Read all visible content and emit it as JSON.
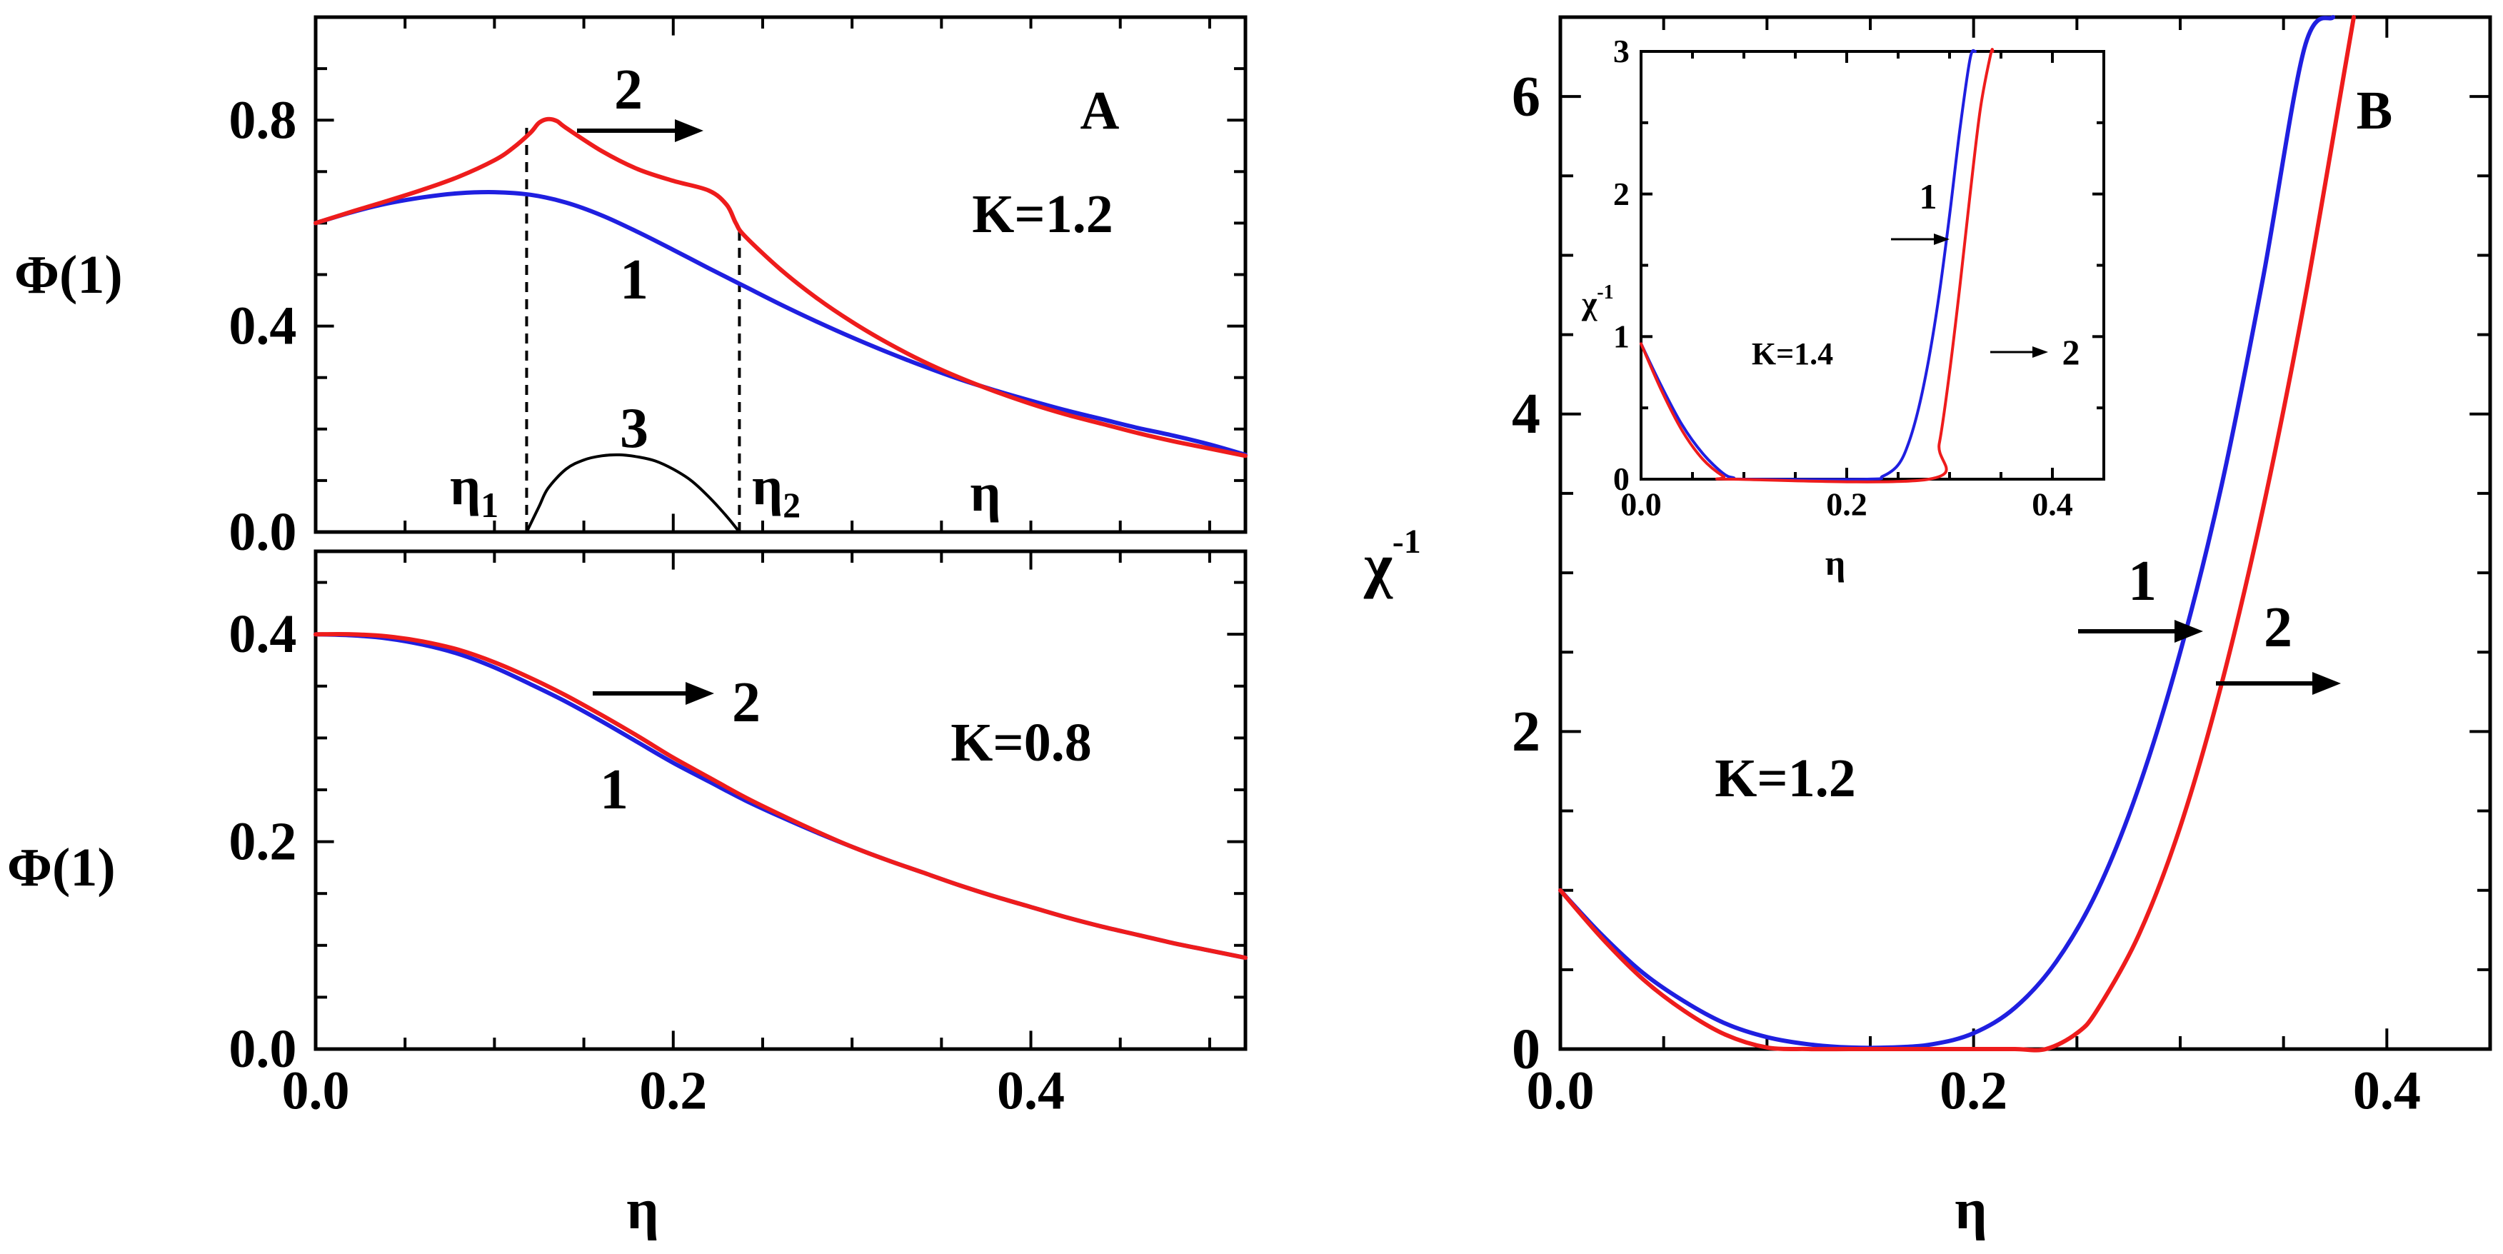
{
  "colors": {
    "curve1": "#1f1fe0",
    "curve2": "#ee1c1c",
    "curve3": "#000000"
  },
  "chart_data": [
    {
      "panel": "A (top)",
      "type": "line",
      "panel_label": "A",
      "annotation": "K=1.2",
      "ylabel": "Φ(1)",
      "xlabel": "η",
      "xlim": [
        0,
        0.52
      ],
      "ylim": [
        0,
        1.0
      ],
      "yticks": [
        "0.0",
        "0.4",
        "0.8"
      ],
      "ytick_values": [
        0,
        0.4,
        0.8
      ],
      "series": [
        {
          "name": "1",
          "color": "#1f1fe0",
          "x": [
            0,
            0.02,
            0.04,
            0.06,
            0.08,
            0.1,
            0.12,
            0.14,
            0.16,
            0.18,
            0.2,
            0.22,
            0.24,
            0.26,
            0.28,
            0.3,
            0.32,
            0.34,
            0.36,
            0.38,
            0.4,
            0.42,
            0.44,
            0.46,
            0.48,
            0.5,
            0.52
          ],
          "y": [
            0.6,
            0.621,
            0.638,
            0.65,
            0.658,
            0.66,
            0.655,
            0.64,
            0.615,
            0.583,
            0.548,
            0.512,
            0.477,
            0.442,
            0.409,
            0.378,
            0.349,
            0.322,
            0.297,
            0.275,
            0.255,
            0.236,
            0.219,
            0.202,
            0.187,
            0.17,
            0.15
          ]
        },
        {
          "name": "2",
          "color": "#ee1c1c",
          "x": [
            0,
            0.02,
            0.04,
            0.06,
            0.08,
            0.1,
            0.11,
            0.12,
            0.125,
            0.13,
            0.135,
            0.14,
            0.16,
            0.18,
            0.2,
            0.22,
            0.23,
            0.235,
            0.24,
            0.26,
            0.28,
            0.3,
            0.32,
            0.34,
            0.36,
            0.38,
            0.4,
            0.42,
            0.44,
            0.46,
            0.48,
            0.5,
            0.52
          ],
          "y": [
            0.6,
            0.622,
            0.643,
            0.665,
            0.69,
            0.722,
            0.745,
            0.775,
            0.795,
            0.802,
            0.798,
            0.785,
            0.74,
            0.705,
            0.682,
            0.663,
            0.635,
            0.6,
            0.575,
            0.51,
            0.455,
            0.408,
            0.367,
            0.331,
            0.3,
            0.273,
            0.249,
            0.228,
            0.21,
            0.192,
            0.176,
            0.162,
            0.148
          ]
        },
        {
          "name": "3",
          "color": "#000000",
          "x": [
            0.118,
            0.125,
            0.13,
            0.14,
            0.15,
            0.16,
            0.17,
            0.18,
            0.19,
            0.2,
            0.21,
            0.22,
            0.23,
            0.237
          ],
          "y": [
            0,
            0.05,
            0.085,
            0.122,
            0.14,
            0.148,
            0.15,
            0.146,
            0.138,
            0.122,
            0.1,
            0.068,
            0.03,
            0
          ]
        }
      ],
      "labels": {
        "curve1": "1",
        "curve2": "2",
        "curve3": "3",
        "eta1": "η",
        "eta1_sub": "1",
        "eta2": "η",
        "eta2_sub": "2",
        "eta_inner": "η"
      },
      "vlines": [
        0.118,
        0.237
      ]
    },
    {
      "panel": "A (bottom)",
      "type": "line",
      "annotation": "K=0.8",
      "ylabel": "Φ(1)",
      "xlabel": "η",
      "xlim": [
        0,
        0.52
      ],
      "ylim": [
        0,
        0.48
      ],
      "yticks": [
        "0.0",
        "0.2",
        "0.4"
      ],
      "ytick_values": [
        0,
        0.2,
        0.4
      ],
      "xticks": [
        "0.0",
        "0.2",
        "0.4"
      ],
      "xtick_values": [
        0,
        0.2,
        0.4
      ],
      "series": [
        {
          "name": "1",
          "color": "#1f1fe0",
          "x": [
            0,
            0.02,
            0.04,
            0.06,
            0.08,
            0.1,
            0.12,
            0.14,
            0.16,
            0.18,
            0.2,
            0.22,
            0.24,
            0.26,
            0.28,
            0.3,
            0.32,
            0.34,
            0.36,
            0.38,
            0.4,
            0.42,
            0.44,
            0.46,
            0.48,
            0.5,
            0.52
          ],
          "y": [
            0.4,
            0.399,
            0.396,
            0.39,
            0.381,
            0.368,
            0.352,
            0.335,
            0.316,
            0.296,
            0.276,
            0.258,
            0.24,
            0.224,
            0.209,
            0.195,
            0.182,
            0.17,
            0.158,
            0.147,
            0.137,
            0.127,
            0.118,
            0.11,
            0.102,
            0.095,
            0.088
          ]
        },
        {
          "name": "2",
          "color": "#ee1c1c",
          "x": [
            0,
            0.02,
            0.04,
            0.06,
            0.08,
            0.1,
            0.12,
            0.14,
            0.16,
            0.18,
            0.2,
            0.22,
            0.24,
            0.26,
            0.28,
            0.3,
            0.32,
            0.34,
            0.36,
            0.38,
            0.4,
            0.42,
            0.44,
            0.46,
            0.48,
            0.5,
            0.52
          ],
          "y": [
            0.4,
            0.4,
            0.398,
            0.393,
            0.385,
            0.373,
            0.358,
            0.341,
            0.322,
            0.302,
            0.281,
            0.262,
            0.243,
            0.226,
            0.21,
            0.195,
            0.182,
            0.17,
            0.158,
            0.147,
            0.137,
            0.127,
            0.118,
            0.11,
            0.102,
            0.095,
            0.088
          ]
        }
      ],
      "labels": {
        "curve1": "1",
        "curve2": "2"
      }
    },
    {
      "panel": "B",
      "type": "line",
      "panel_label": "B",
      "annotation": "K=1.2",
      "ylabel": "χ",
      "ylabel_sup": "-1",
      "xlabel": "η",
      "xlim": [
        0,
        0.45
      ],
      "ylim": [
        0,
        6.5
      ],
      "yticks": [
        "0",
        "2",
        "4",
        "6"
      ],
      "ytick_values": [
        0,
        2,
        4,
        6
      ],
      "xticks": [
        "0.0",
        "0.2",
        "0.4"
      ],
      "xtick_values": [
        0,
        0.2,
        0.4
      ],
      "series": [
        {
          "name": "1",
          "color": "#1f1fe0",
          "x": [
            0,
            0.02,
            0.04,
            0.06,
            0.08,
            0.1,
            0.12,
            0.14,
            0.16,
            0.18,
            0.2,
            0.22,
            0.24,
            0.26,
            0.28,
            0.3,
            0.32,
            0.34,
            0.36,
            0.374
          ],
          "y": [
            1.0,
            0.72,
            0.48,
            0.3,
            0.16,
            0.075,
            0.03,
            0.01,
            0.01,
            0.03,
            0.1,
            0.26,
            0.55,
            1.0,
            1.65,
            2.5,
            3.55,
            4.85,
            6.3,
            6.5
          ]
        },
        {
          "name": "2",
          "color": "#ee1c1c",
          "x": [
            0,
            0.02,
            0.04,
            0.06,
            0.08,
            0.1,
            0.12,
            0.14,
            0.16,
            0.18,
            0.2,
            0.22,
            0.235,
            0.25,
            0.26,
            0.28,
            0.3,
            0.32,
            0.34,
            0.36,
            0.38,
            0.384
          ],
          "y": [
            1.0,
            0.7,
            0.44,
            0.24,
            0.09,
            0.01,
            0,
            0,
            0,
            0,
            0,
            0,
            0,
            0.1,
            0.25,
            0.72,
            1.4,
            2.3,
            3.4,
            4.7,
            6.2,
            6.5
          ]
        }
      ],
      "labels": {
        "curve1": "1",
        "curve2": "2"
      }
    },
    {
      "panel": "B inset",
      "type": "line",
      "annotation": "K=1.4",
      "ylabel": "χ",
      "ylabel_sup": "-1",
      "xlabel": "η",
      "xlim": [
        0,
        0.45
      ],
      "ylim": [
        0,
        3
      ],
      "yticks": [
        "0",
        "1",
        "2",
        "3"
      ],
      "ytick_values": [
        0,
        1,
        2,
        3
      ],
      "xticks": [
        "0.0",
        "0.2",
        "0.4"
      ],
      "xtick_values": [
        0,
        0.2,
        0.4
      ],
      "series": [
        {
          "name": "1",
          "color": "#1f1fe0",
          "x": [
            0,
            0.02,
            0.04,
            0.06,
            0.08,
            0.09,
            0.1,
            0.22,
            0.235,
            0.25,
            0.26,
            0.27,
            0.28,
            0.29,
            0.3,
            0.31,
            0.32,
            0.325
          ],
          "y": [
            0.95,
            0.65,
            0.38,
            0.18,
            0.04,
            0.01,
            0,
            0,
            0.02,
            0.1,
            0.25,
            0.5,
            0.85,
            1.3,
            1.85,
            2.45,
            2.95,
            3.0
          ]
        },
        {
          "name": "2",
          "color": "#ee1c1c",
          "x": [
            0,
            0.02,
            0.04,
            0.06,
            0.08,
            0.09,
            0.28,
            0.29,
            0.3,
            0.31,
            0.32,
            0.33,
            0.34,
            0.342
          ],
          "y": [
            0.95,
            0.62,
            0.34,
            0.14,
            0.02,
            0,
            0,
            0.25,
            0.75,
            1.35,
            2.0,
            2.6,
            2.98,
            3.0
          ]
        }
      ],
      "labels": {
        "curve1": "1",
        "curve2": "2"
      }
    }
  ]
}
